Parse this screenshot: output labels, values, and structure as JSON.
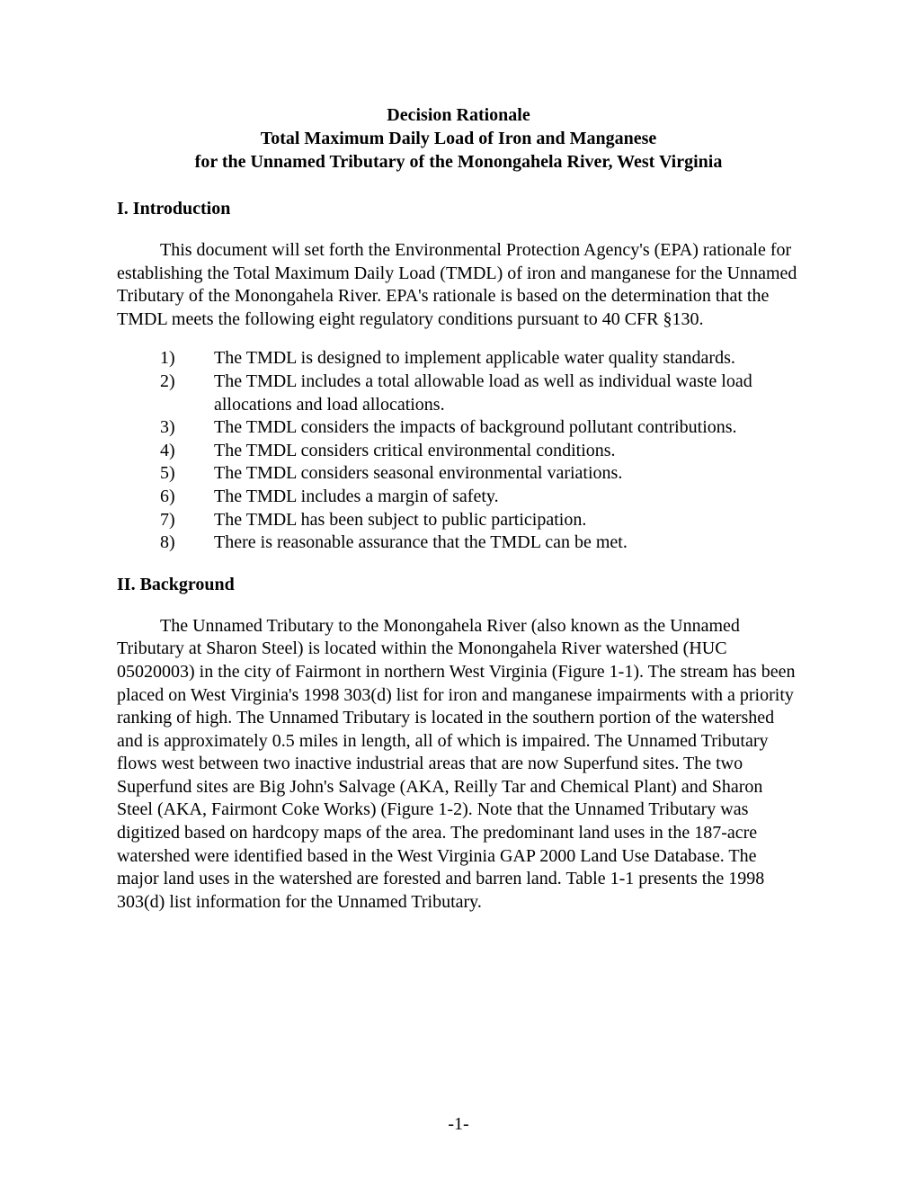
{
  "title": {
    "line1": "Decision Rationale",
    "line2": "Total Maximum Daily Load of Iron and Manganese",
    "line3": "for the Unnamed Tributary of the Monongahela River, West Virginia"
  },
  "sections": {
    "intro": {
      "heading": "I. Introduction",
      "para1": "This document will set forth the Environmental Protection Agency's (EPA) rationale for establishing the Total Maximum Daily Load (TMDL) of iron and manganese for the Unnamed Tributary of the Monongahela River.  EPA's rationale is based on the determination that the TMDL meets the following eight regulatory conditions pursuant to 40 CFR §130.",
      "list": [
        {
          "n": "1)",
          "t": "The TMDL is designed to implement applicable water quality standards."
        },
        {
          "n": "2)",
          "t": "The TMDL includes a total allowable load as well as individual waste load allocations and load allocations."
        },
        {
          "n": "3)",
          "t": "The TMDL considers the impacts of background pollutant contributions."
        },
        {
          "n": "4)",
          "t": "The TMDL considers critical environmental conditions."
        },
        {
          "n": "5)",
          "t": "The TMDL considers seasonal environmental variations."
        },
        {
          "n": "6)",
          "t": "The TMDL includes a margin of safety."
        },
        {
          "n": "7)",
          "t": "The TMDL has been subject to public participation."
        },
        {
          "n": "8)",
          "t": "There is reasonable assurance that the TMDL can be met."
        }
      ]
    },
    "background": {
      "heading": "II. Background",
      "para1": "The Unnamed Tributary to the Monongahela River (also known as the Unnamed Tributary at Sharon Steel) is located within the Monongahela River watershed (HUC 05020003) in the city of Fairmont in northern West Virginia (Figure 1-1).  The stream has been placed on West Virginia's 1998 303(d) list for iron and manganese impairments with a priority ranking of high.  The Unnamed Tributary is located in the southern portion of the watershed and is approximately 0.5 miles in length, all of which is impaired.  The Unnamed Tributary flows west between two inactive industrial areas that are now Superfund sites.  The two Superfund sites are Big John's Salvage (AKA, Reilly Tar and Chemical Plant) and Sharon Steel (AKA, Fairmont Coke Works) (Figure 1-2).  Note that the Unnamed Tributary was digitized based on hardcopy maps of the area.  The predominant land uses in the 187-acre watershed were identified based in the West Virginia GAP 2000 Land Use Database.  The major land uses in the watershed are forested and barren land.  Table 1-1 presents the 1998 303(d) list information for the Unnamed Tributary."
    }
  },
  "pageNumber": "-1-"
}
